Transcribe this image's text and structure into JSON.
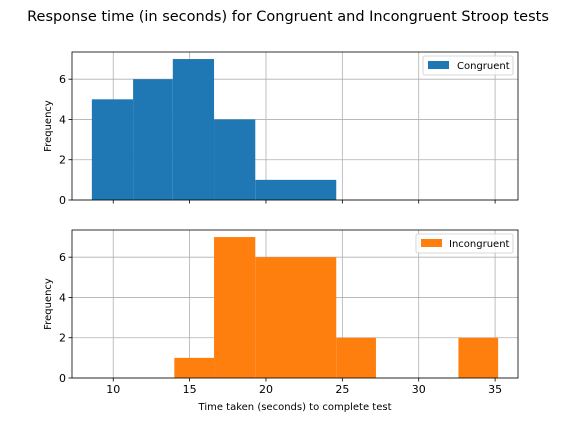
{
  "figure": {
    "title": "Response time (in seconds) for Congruent and Incongruent Stroop tests"
  },
  "chart_data": [
    {
      "type": "bar",
      "subtype": "histogram",
      "series": [
        {
          "name": "Congruent",
          "color": "#1f77b4"
        }
      ],
      "bins": [
        {
          "x0": 8.6,
          "x1": 11.3,
          "count": 5
        },
        {
          "x0": 11.3,
          "x1": 13.9,
          "count": 6
        },
        {
          "x0": 13.9,
          "x1": 16.6,
          "count": 7
        },
        {
          "x0": 16.6,
          "x1": 19.3,
          "count": 4
        },
        {
          "x0": 19.3,
          "x1": 21.9,
          "count": 1
        },
        {
          "x0": 21.9,
          "x1": 24.6,
          "count": 1
        }
      ],
      "xlim": [
        7.3,
        36.5
      ],
      "ylim": [
        0,
        7.35
      ],
      "xticks": [
        10,
        15,
        20,
        25,
        30,
        35
      ],
      "show_xtick_labels": false,
      "yticks": [
        0,
        2,
        4,
        6
      ],
      "xlabel": "",
      "ylabel": "Frequency",
      "grid": true,
      "legend": "top-right"
    },
    {
      "type": "bar",
      "subtype": "histogram",
      "series": [
        {
          "name": "Incongruent",
          "color": "#ff7f0e"
        }
      ],
      "bins": [
        {
          "x0": 14.0,
          "x1": 16.6,
          "count": 1
        },
        {
          "x0": 16.6,
          "x1": 19.3,
          "count": 7
        },
        {
          "x0": 19.3,
          "x1": 21.9,
          "count": 6
        },
        {
          "x0": 21.9,
          "x1": 24.6,
          "count": 6
        },
        {
          "x0": 24.6,
          "x1": 27.2,
          "count": 2
        },
        {
          "x0": 32.6,
          "x1": 35.2,
          "count": 2
        }
      ],
      "xlim": [
        7.3,
        36.5
      ],
      "ylim": [
        0,
        7.35
      ],
      "xticks": [
        10,
        15,
        20,
        25,
        30,
        35
      ],
      "show_xtick_labels": true,
      "yticks": [
        0,
        2,
        4,
        6
      ],
      "xlabel": "Time taken (seconds) to complete test",
      "ylabel": "Frequency",
      "grid": true,
      "legend": "top-right"
    }
  ]
}
